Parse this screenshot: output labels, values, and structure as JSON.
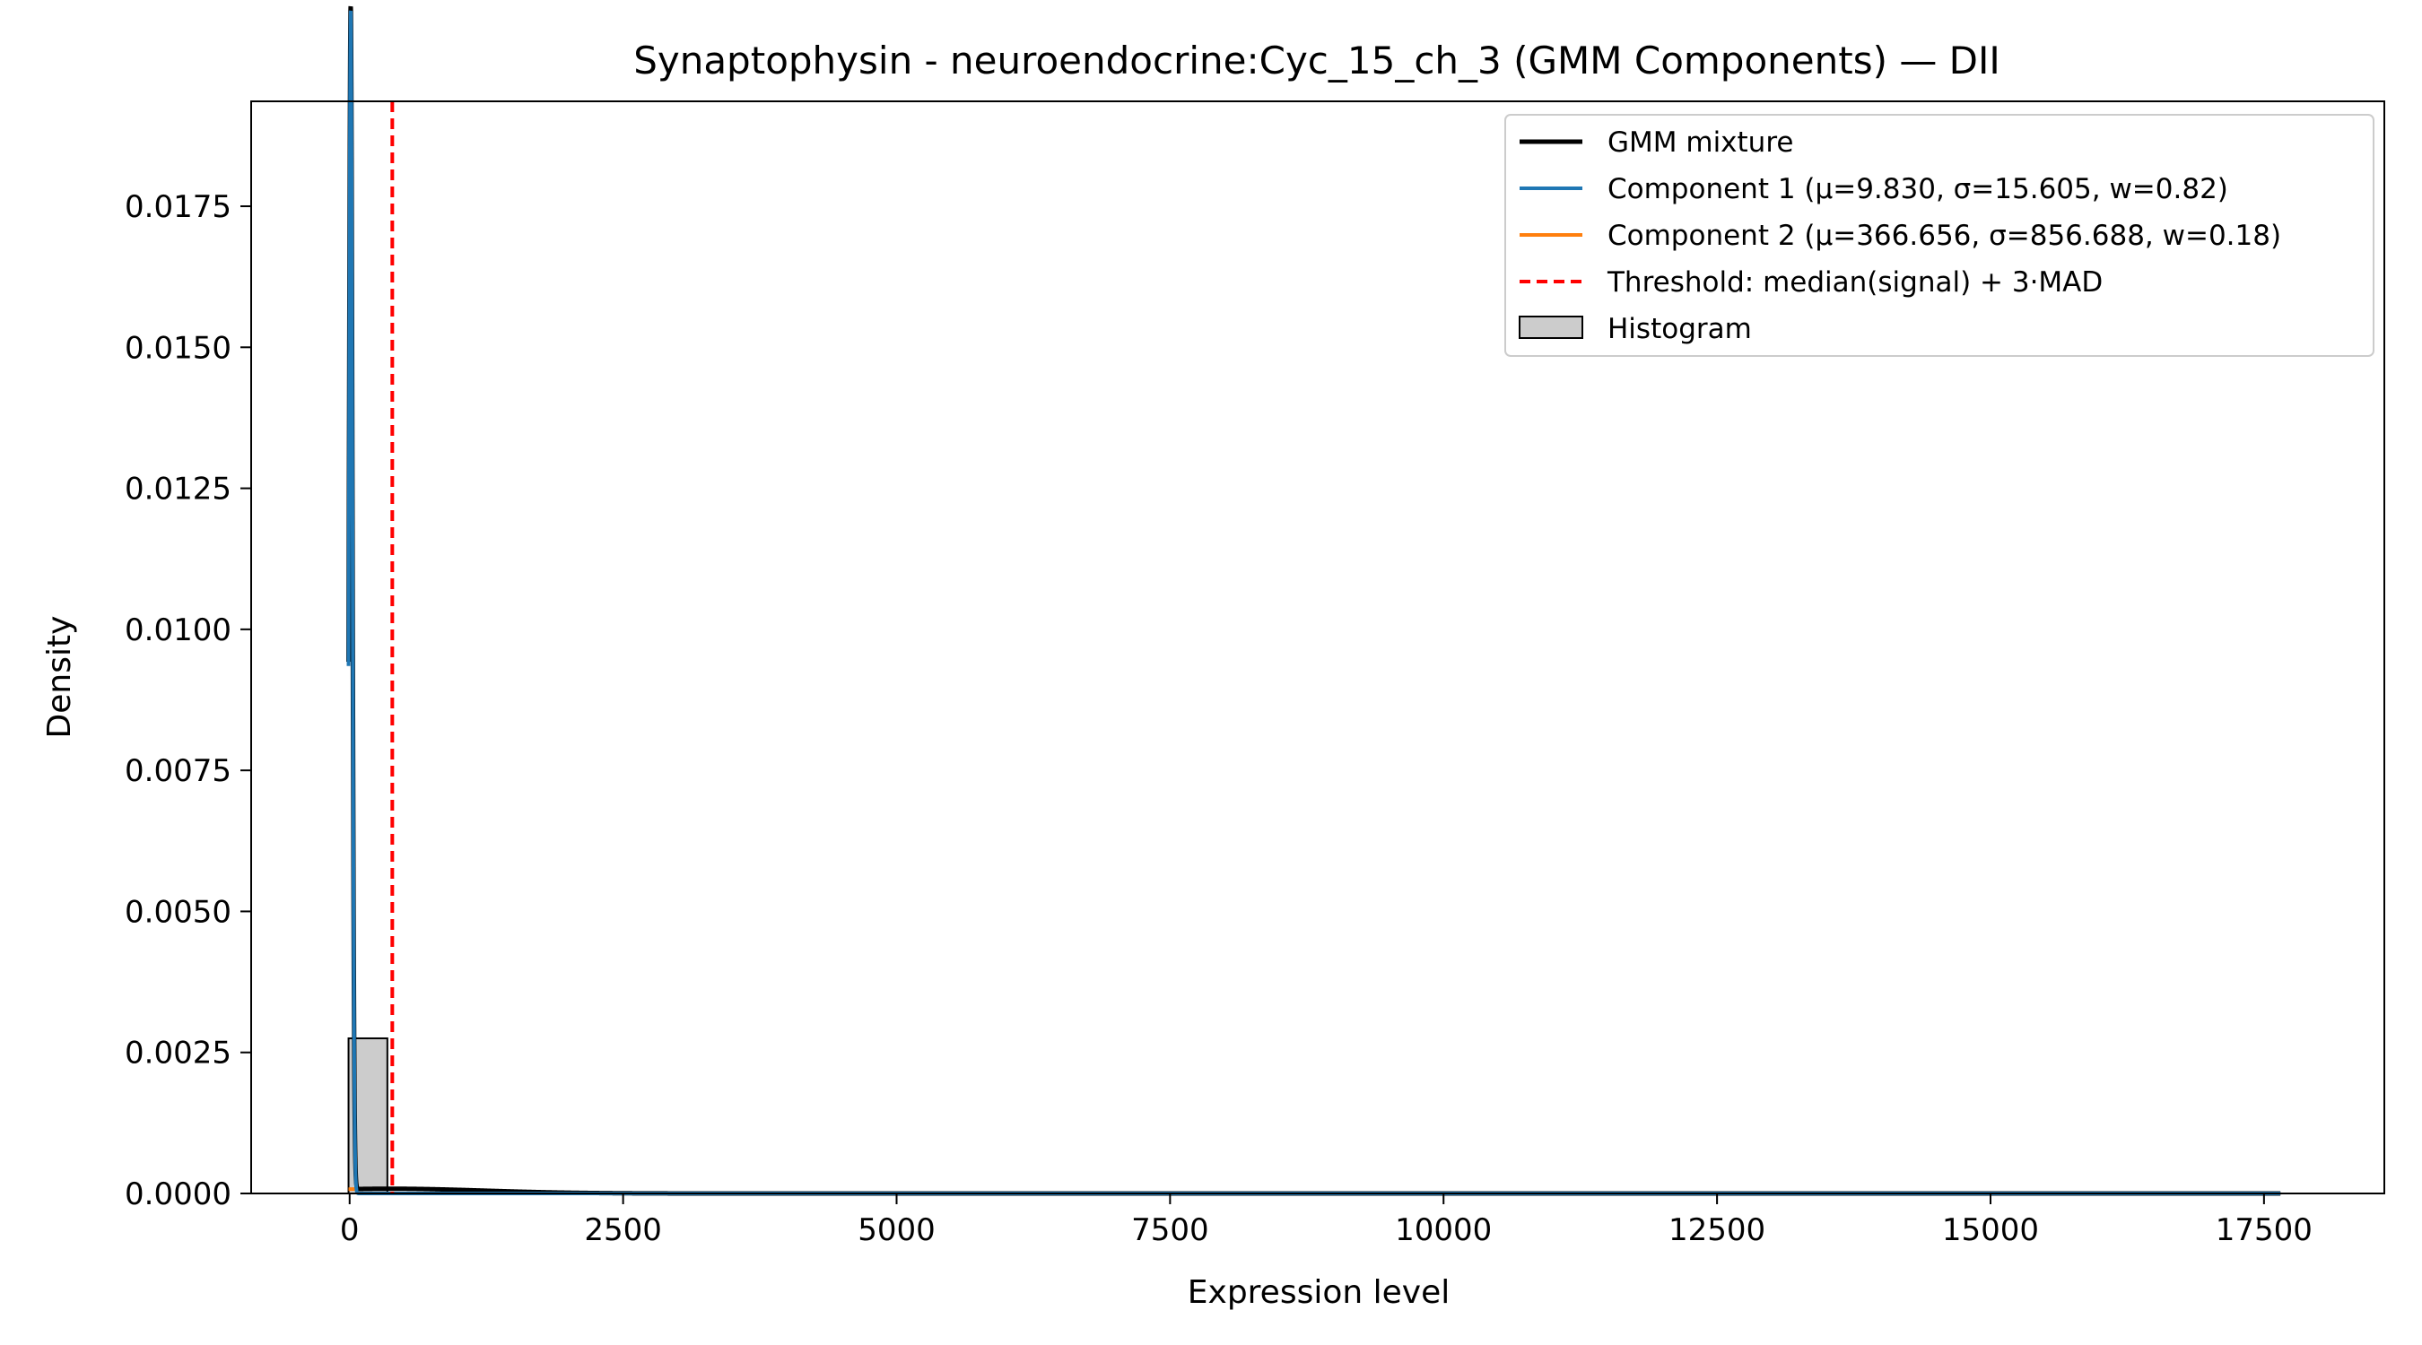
{
  "chart_data": {
    "type": "line",
    "title": "Synaptophysin - neuroendocrine:Cyc_15_ch_3 (GMM Components) — DII",
    "xlabel": "Expression level",
    "ylabel": "Density",
    "xlim": [
      -900,
      18600
    ],
    "ylim": [
      0,
      0.01936
    ],
    "xticks": [
      0,
      2500,
      5000,
      7500,
      10000,
      12500,
      15000,
      17500
    ],
    "xtick_labels": [
      "0",
      "2500",
      "5000",
      "7500",
      "10000",
      "12500",
      "15000",
      "17500"
    ],
    "yticks": [
      0,
      0.0025,
      0.005,
      0.0075,
      0.01,
      0.0125,
      0.015,
      0.0175
    ],
    "ytick_labels": [
      "0.0000",
      "0.0025",
      "0.0050",
      "0.0075",
      "0.0100",
      "0.0125",
      "0.0150",
      "0.0175"
    ],
    "grid": false,
    "legend_position": "top-right",
    "components": [
      {
        "mu": 9.83,
        "sigma": 15.605,
        "w": 0.82
      },
      {
        "mu": 366.656,
        "sigma": 856.688,
        "w": 0.18
      }
    ],
    "x_range": [
      -10,
      17700
    ],
    "series": [
      {
        "name": "GMM mixture",
        "color": "#000000",
        "style": "solid"
      },
      {
        "name": "Component 1 (μ=9.830, σ=15.605, w=0.82)",
        "color": "#1f77b4",
        "style": "solid"
      },
      {
        "name": "Component 2 (μ=366.656, σ=856.688, w=0.18)",
        "color": "#ff7f0e",
        "style": "solid"
      },
      {
        "name": "Threshold: median(signal) + 3·MAD",
        "color": "#ff0000",
        "style": "dashed"
      },
      {
        "name": "Histogram",
        "color": "#cccccc",
        "style": "bar"
      }
    ],
    "threshold_x": 390,
    "histogram": [
      {
        "x0": -10,
        "x1": 345,
        "density": 0.00275
      }
    ]
  }
}
